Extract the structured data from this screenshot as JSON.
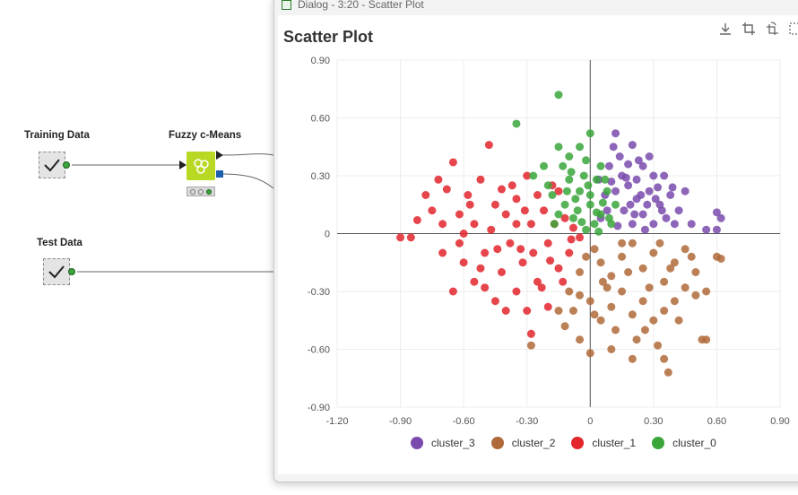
{
  "workflow": {
    "nodes": [
      {
        "key": "training",
        "label": "Training Data"
      },
      {
        "key": "fcm",
        "label": "Fuzzy c-Means"
      },
      {
        "key": "test",
        "label": "Test Data"
      }
    ]
  },
  "dialog": {
    "title": "Dialog - 3:20 - Scatter Plot",
    "panel_title": "Scatter Plot",
    "toolbar": [
      "download-icon",
      "crop-icon",
      "crop-rotate-icon",
      "select-icon"
    ]
  },
  "chart_data": {
    "type": "scatter",
    "title": "Scatter Plot",
    "xlabel": "",
    "ylabel": "",
    "xlim": [
      -1.2,
      0.9
    ],
    "ylim": [
      -0.9,
      0.9
    ],
    "x_ticks": [
      "-1.20",
      "-0.90",
      "-0.60",
      "-0.30",
      "0",
      "0.30",
      "0.60",
      "0.90"
    ],
    "y_ticks": [
      "0.90",
      "0.60",
      "0.30",
      "0",
      "-0.30",
      "-0.60",
      "-0.90"
    ],
    "grid": true,
    "legend_position": "bottom",
    "series": [
      {
        "name": "cluster_3",
        "color": "#7a4bad",
        "points": [
          [
            0.05,
            0.08
          ],
          [
            0.08,
            0.12
          ],
          [
            0.12,
            0.22
          ],
          [
            0.15,
            0.3
          ],
          [
            0.18,
            0.25
          ],
          [
            0.22,
            0.18
          ],
          [
            0.25,
            0.1
          ],
          [
            0.28,
            0.22
          ],
          [
            0.3,
            0.3
          ],
          [
            0.33,
            0.15
          ],
          [
            0.36,
            0.08
          ],
          [
            0.2,
            0.05
          ],
          [
            0.1,
            0.27
          ],
          [
            0.14,
            0.4
          ],
          [
            0.2,
            0.46
          ],
          [
            0.11,
            0.45
          ],
          [
            0.18,
            0.36
          ],
          [
            0.25,
            0.35
          ],
          [
            0.12,
            0.52
          ],
          [
            0.28,
            0.4
          ],
          [
            0.32,
            0.24
          ],
          [
            0.38,
            0.2
          ],
          [
            0.42,
            0.12
          ],
          [
            0.45,
            0.22
          ],
          [
            0.48,
            0.05
          ],
          [
            0.55,
            0.02
          ],
          [
            0.6,
            0.02
          ],
          [
            0.62,
            0.08
          ],
          [
            0.6,
            0.11
          ],
          [
            0.24,
            0.2
          ],
          [
            0.16,
            0.12
          ],
          [
            0.3,
            0.05
          ],
          [
            0.22,
            0.28
          ],
          [
            0.35,
            0.3
          ],
          [
            0.4,
            0.05
          ],
          [
            0.07,
            0.2
          ],
          [
            0.09,
            0.35
          ],
          [
            0.26,
            0.02
          ],
          [
            0.19,
            0.15
          ],
          [
            0.34,
            0.12
          ],
          [
            0.04,
            0.28
          ],
          [
            0.27,
            0.15
          ],
          [
            0.13,
            0.04
          ],
          [
            0.39,
            0.24
          ],
          [
            0.17,
            0.29
          ],
          [
            0.31,
            0.18
          ],
          [
            0.23,
            0.38
          ],
          [
            0.21,
            0.1
          ]
        ]
      },
      {
        "name": "cluster_2",
        "color": "#b06a3a",
        "points": [
          [
            0.02,
            -0.08
          ],
          [
            0.05,
            -0.15
          ],
          [
            0.1,
            -0.22
          ],
          [
            0.15,
            -0.12
          ],
          [
            0.2,
            -0.05
          ],
          [
            0.25,
            -0.18
          ],
          [
            0.3,
            -0.1
          ],
          [
            0.35,
            -0.25
          ],
          [
            0.4,
            -0.15
          ],
          [
            0.45,
            -0.08
          ],
          [
            0.5,
            -0.2
          ],
          [
            0.55,
            -0.3
          ],
          [
            0.6,
            -0.12
          ],
          [
            0.62,
            -0.13
          ],
          [
            0.55,
            -0.55
          ],
          [
            0.53,
            -0.55
          ],
          [
            0.35,
            -0.65
          ],
          [
            0.37,
            -0.72
          ],
          [
            0.2,
            -0.65
          ],
          [
            0.1,
            -0.6
          ],
          [
            0.0,
            -0.62
          ],
          [
            -0.05,
            -0.55
          ],
          [
            -0.12,
            -0.48
          ],
          [
            -0.15,
            -0.4
          ],
          [
            -0.1,
            -0.3
          ],
          [
            -0.05,
            -0.2
          ],
          [
            0.0,
            -0.35
          ],
          [
            0.05,
            -0.45
          ],
          [
            0.1,
            -0.38
          ],
          [
            0.15,
            -0.3
          ],
          [
            0.2,
            -0.42
          ],
          [
            0.25,
            -0.35
          ],
          [
            0.3,
            -0.45
          ],
          [
            0.35,
            -0.4
          ],
          [
            0.4,
            -0.35
          ],
          [
            0.45,
            -0.28
          ],
          [
            0.5,
            -0.32
          ],
          [
            0.08,
            -0.28
          ],
          [
            0.18,
            -0.2
          ],
          [
            0.28,
            -0.28
          ],
          [
            0.38,
            -0.18
          ],
          [
            0.48,
            -0.12
          ],
          [
            -0.02,
            -0.12
          ],
          [
            -0.28,
            -0.58
          ],
          [
            0.12,
            -0.5
          ],
          [
            0.22,
            -0.55
          ],
          [
            0.32,
            -0.58
          ],
          [
            0.02,
            -0.42
          ],
          [
            -0.08,
            -0.4
          ],
          [
            0.42,
            -0.45
          ],
          [
            0.15,
            -0.05
          ],
          [
            0.33,
            -0.05
          ],
          [
            0.26,
            -0.5
          ],
          [
            0.06,
            -0.25
          ],
          [
            -0.05,
            -0.32
          ]
        ]
      },
      {
        "name": "cluster_1",
        "color": "#e2262c",
        "points": [
          [
            -0.9,
            -0.02
          ],
          [
            -0.85,
            -0.02
          ],
          [
            -0.82,
            0.07
          ],
          [
            -0.78,
            0.2
          ],
          [
            -0.75,
            0.12
          ],
          [
            -0.72,
            0.28
          ],
          [
            -0.7,
            0.05
          ],
          [
            -0.68,
            0.23
          ],
          [
            -0.65,
            0.37
          ],
          [
            -0.62,
            0.1
          ],
          [
            -0.6,
            -0.15
          ],
          [
            -0.58,
            0.2
          ],
          [
            -0.55,
            0.05
          ],
          [
            -0.52,
            0.28
          ],
          [
            -0.5,
            -0.1
          ],
          [
            -0.48,
            0.46
          ],
          [
            -0.45,
            0.15
          ],
          [
            -0.42,
            -0.2
          ],
          [
            -0.4,
            0.1
          ],
          [
            -0.38,
            -0.05
          ],
          [
            -0.35,
            0.18
          ],
          [
            -0.32,
            -0.15
          ],
          [
            -0.3,
            0.3
          ],
          [
            -0.28,
            0.05
          ],
          [
            -0.25,
            -0.25
          ],
          [
            -0.22,
            0.12
          ],
          [
            -0.2,
            -0.05
          ],
          [
            -0.18,
            0.25
          ],
          [
            -0.15,
            -0.18
          ],
          [
            -0.12,
            0.08
          ],
          [
            -0.1,
            -0.1
          ],
          [
            -0.08,
            0.03
          ],
          [
            -0.05,
            -0.02
          ],
          [
            -0.35,
            -0.3
          ],
          [
            -0.45,
            -0.35
          ],
          [
            -0.55,
            -0.25
          ],
          [
            -0.65,
            -0.3
          ],
          [
            -0.3,
            -0.4
          ],
          [
            -0.2,
            -0.38
          ],
          [
            -0.4,
            -0.4
          ],
          [
            -0.28,
            -0.52
          ],
          [
            -0.5,
            -0.28
          ],
          [
            -0.6,
            0.0
          ],
          [
            -0.7,
            -0.1
          ],
          [
            -0.35,
            0.05
          ],
          [
            -0.25,
            0.2
          ],
          [
            -0.15,
            0.22
          ],
          [
            -0.42,
            0.23
          ],
          [
            -0.33,
            -0.08
          ],
          [
            -0.23,
            -0.28
          ],
          [
            -0.13,
            -0.25
          ],
          [
            -0.47,
            0.02
          ],
          [
            -0.57,
            0.15
          ],
          [
            -0.37,
            0.25
          ],
          [
            -0.27,
            -0.1
          ],
          [
            -0.17,
            0.05
          ],
          [
            -0.62,
            -0.05
          ],
          [
            -0.52,
            -0.18
          ],
          [
            -0.44,
            -0.08
          ],
          [
            -0.31,
            0.12
          ],
          [
            -0.19,
            -0.14
          ],
          [
            -0.09,
            -0.03
          ]
        ]
      },
      {
        "name": "cluster_0",
        "color": "#3aa63a",
        "points": [
          [
            -0.15,
            0.72
          ],
          [
            -0.35,
            0.57
          ],
          [
            -0.15,
            0.45
          ],
          [
            -0.1,
            0.4
          ],
          [
            -0.05,
            0.45
          ],
          [
            0.0,
            0.52
          ],
          [
            -0.22,
            0.35
          ],
          [
            -0.27,
            0.3
          ],
          [
            -0.02,
            0.38
          ],
          [
            0.05,
            0.35
          ],
          [
            -0.1,
            0.28
          ],
          [
            -0.05,
            0.22
          ],
          [
            0.0,
            0.15
          ],
          [
            0.05,
            0.1
          ],
          [
            -0.12,
            0.15
          ],
          [
            -0.18,
            0.2
          ],
          [
            -0.08,
            0.08
          ],
          [
            0.02,
            0.05
          ],
          [
            -0.15,
            0.1
          ],
          [
            0.08,
            0.22
          ],
          [
            0.03,
            0.28
          ],
          [
            -0.03,
            0.3
          ],
          [
            -0.07,
            0.18
          ],
          [
            0.06,
            0.16
          ],
          [
            0.1,
            0.05
          ],
          [
            -0.02,
            0.02
          ],
          [
            0.04,
            0.01
          ],
          [
            -0.2,
            0.25
          ],
          [
            -0.13,
            0.35
          ],
          [
            0.12,
            0.15
          ],
          [
            -0.17,
            0.05
          ],
          [
            0.0,
            0.2
          ],
          [
            -0.06,
            0.12
          ],
          [
            0.07,
            0.28
          ],
          [
            -0.11,
            0.22
          ],
          [
            0.03,
            0.11
          ],
          [
            -0.04,
            0.06
          ],
          [
            0.09,
            0.08
          ],
          [
            -0.01,
            0.25
          ],
          [
            -0.09,
            0.32
          ]
        ]
      }
    ]
  }
}
